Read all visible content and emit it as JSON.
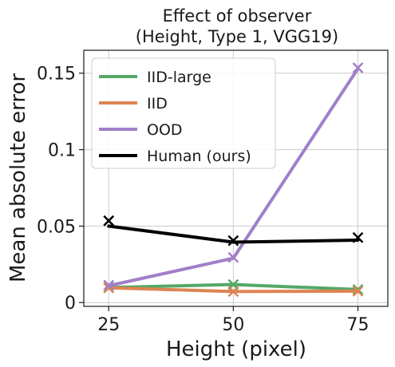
{
  "chart_data": {
    "type": "line",
    "title": [
      "Effect of observer",
      "(Height, Type 1, VGG19)"
    ],
    "xlabel": "Height (pixel)",
    "ylabel": "Mean absolute error",
    "x": [
      25,
      50,
      75
    ],
    "x_ticks": [
      "25",
      "50",
      "75"
    ],
    "y_ticks": [
      {
        "value": 0,
        "label": "0"
      },
      {
        "value": 0.05,
        "label": "0.05"
      },
      {
        "value": 0.1,
        "label": "0.1"
      },
      {
        "value": 0.15,
        "label": "0.15"
      }
    ],
    "xlim": [
      20,
      81
    ],
    "ylim": [
      -0.0025,
      0.165
    ],
    "grid": true,
    "legend_position": "upper-left",
    "series": [
      {
        "name": "IID-large",
        "color": "#55a868",
        "values": [
          0.0098,
          0.0118,
          0.0085
        ],
        "markers": [
          0.0098,
          0.0118,
          0.0085
        ]
      },
      {
        "name": "IID",
        "color": "#dd8452",
        "values": [
          0.0096,
          0.0072,
          0.0075
        ],
        "markers": [
          0.0096,
          0.0072,
          0.0075
        ]
      },
      {
        "name": "OOD",
        "color": "#a17fc9",
        "values": [
          0.011,
          0.029,
          0.153
        ],
        "markers": [
          0.0113,
          0.0295,
          0.1535
        ]
      },
      {
        "name": "Human (ours)",
        "color": "#000000",
        "values": [
          0.05,
          0.0395,
          0.0408
        ],
        "markers": [
          0.0535,
          0.0405,
          0.0425
        ]
      }
    ]
  }
}
